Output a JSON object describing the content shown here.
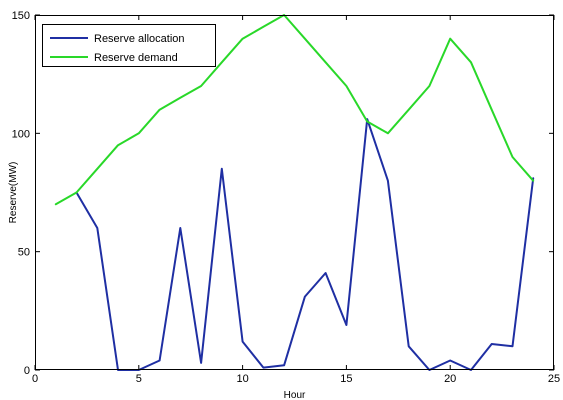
{
  "chart_data": {
    "type": "line",
    "title": "",
    "xlabel": "Hour",
    "ylabel": "Reserve(MW)",
    "xlim": [
      0,
      25
    ],
    "ylim": [
      0,
      150
    ],
    "xticks": [
      0,
      5,
      10,
      15,
      20,
      25
    ],
    "yticks": [
      0,
      50,
      100,
      150
    ],
    "grid": false,
    "legend_position": "top-left",
    "series": [
      {
        "name": "Reserve allocation",
        "color": "#1f2fa3",
        "x": [
          2,
          3,
          4,
          5,
          6,
          7,
          8,
          9,
          10,
          11,
          12,
          13,
          14,
          15,
          16,
          17,
          18,
          19,
          20,
          21,
          22,
          23,
          24
        ],
        "y": [
          75,
          60,
          0,
          0,
          4,
          60,
          3,
          85,
          12,
          1,
          2,
          31,
          41,
          19,
          106,
          80,
          10,
          0,
          4,
          0,
          11,
          10,
          81
        ]
      },
      {
        "name": "Reserve demand",
        "color": "#29d829",
        "x": [
          1,
          2,
          3,
          4,
          5,
          6,
          7,
          8,
          9,
          10,
          11,
          12,
          13,
          14,
          15,
          16,
          17,
          18,
          19,
          20,
          21,
          22,
          23,
          24
        ],
        "y": [
          70,
          75,
          85,
          95,
          100,
          110,
          115,
          120,
          130,
          140,
          145,
          150,
          140,
          130,
          120,
          105,
          100,
          110,
          120,
          140,
          130,
          110,
          90,
          80
        ]
      }
    ]
  }
}
